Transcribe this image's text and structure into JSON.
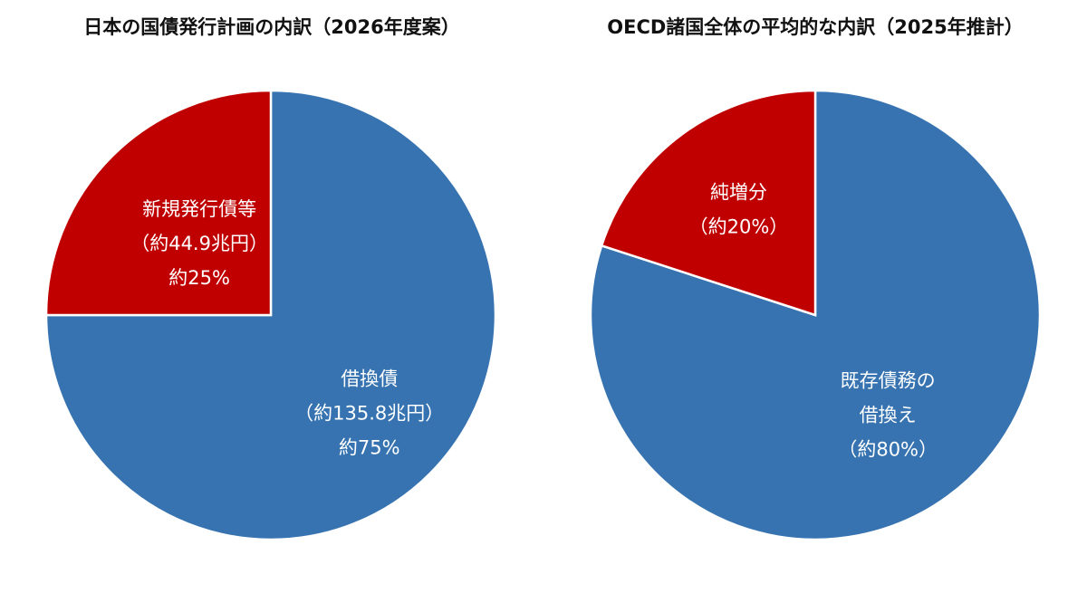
{
  "chart_data": [
    {
      "type": "pie",
      "title": "日本の国債発行計画の内訳（2026年度案）",
      "start": "top",
      "direction": "clockwise",
      "slices": [
        {
          "label_lines": [
            "借換債",
            "（約135.8兆円）",
            "約75%"
          ],
          "value": 75,
          "color": "#3673B0"
        },
        {
          "label_lines": [
            "新規発行債等",
            "（約44.9兆円）",
            "約25%"
          ],
          "value": 25,
          "color": "#C00000"
        }
      ]
    },
    {
      "type": "pie",
      "title": "OECD諸国全体の平均的な内訳（2025年推計）",
      "start": "top",
      "direction": "clockwise",
      "slices": [
        {
          "label_lines": [
            "既存債務の",
            "借換え",
            "（約80%）"
          ],
          "value": 80,
          "color": "#3673B0"
        },
        {
          "label_lines": [
            "純増分",
            "（約20%）"
          ],
          "value": 20,
          "color": "#C00000"
        }
      ]
    }
  ]
}
